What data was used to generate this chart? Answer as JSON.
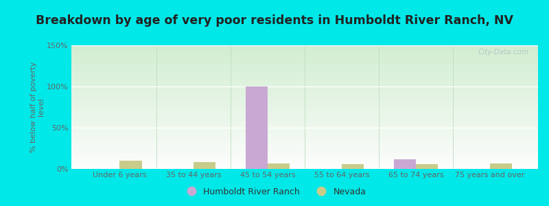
{
  "title": "Breakdown by age of very poor residents in Humboldt River Ranch, NV",
  "ylabel": "% below half of poverty\nlevel",
  "categories": [
    "Under 6 years",
    "35 to 44 years",
    "45 to 54 years",
    "55 to 64 years",
    "65 to 74 years",
    "75 years and over"
  ],
  "hrr_values": [
    0,
    0,
    100,
    0,
    12,
    0
  ],
  "nv_values": [
    10,
    8,
    7,
    6,
    6,
    7
  ],
  "hrr_color": "#c9a8d4",
  "nv_color": "#c8cc8a",
  "ylim": [
    0,
    150
  ],
  "yticks": [
    0,
    50,
    100,
    150
  ],
  "ytick_labels": [
    "0%",
    "50%",
    "100%",
    "150%"
  ],
  "outer_bg": "#00e8e8",
  "bar_width": 0.3,
  "legend_labels": [
    "Humboldt River Ranch",
    "Nevada"
  ],
  "watermark": "City-Data.com",
  "title_fontsize": 12.5,
  "tick_fontsize": 8,
  "legend_fontsize": 9
}
